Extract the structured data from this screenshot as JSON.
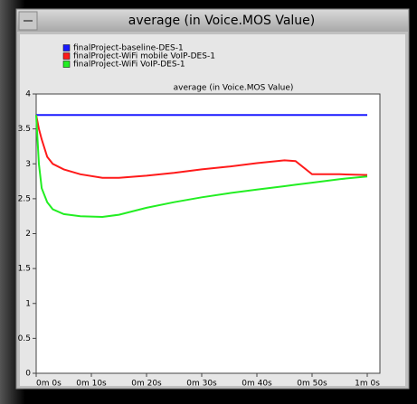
{
  "window_title": "average (in Voice.MOS Value)",
  "chart_data": {
    "type": "line",
    "title": "average (in Voice.MOS Value)",
    "x": [
      0,
      0.5,
      1,
      2,
      3,
      5,
      8,
      12,
      15,
      20,
      25,
      30,
      35,
      40,
      45,
      47,
      50,
      55,
      60
    ],
    "series": [
      {
        "name": "finalProject-baseline-DES-1",
        "color": "#1a1aff",
        "values": [
          3.7,
          3.7,
          3.7,
          3.7,
          3.7,
          3.7,
          3.7,
          3.7,
          3.7,
          3.7,
          3.7,
          3.7,
          3.7,
          3.7,
          3.7,
          3.7,
          3.7,
          3.7,
          3.7
        ]
      },
      {
        "name": "finalProject-WiFi mobile VoIP-DES-1",
        "color": "#ff1a1a",
        "values": [
          3.7,
          3.5,
          3.35,
          3.1,
          3.0,
          2.92,
          2.85,
          2.8,
          2.8,
          2.83,
          2.87,
          2.92,
          2.96,
          3.01,
          3.05,
          3.04,
          2.85,
          2.85,
          2.84
        ]
      },
      {
        "name": "finalProject-WiFi VoIP-DES-1",
        "color": "#22ee22",
        "values": [
          3.7,
          3.0,
          2.65,
          2.45,
          2.35,
          2.28,
          2.25,
          2.24,
          2.27,
          2.37,
          2.45,
          2.52,
          2.58,
          2.63,
          2.68,
          2.7,
          2.73,
          2.78,
          2.82
        ]
      }
    ],
    "xlim": [
      0,
      60
    ],
    "xticks": [
      {
        "value": 0,
        "label": "0m 0s"
      },
      {
        "value": 10,
        "label": "0m 10s"
      },
      {
        "value": 20,
        "label": "0m 20s"
      },
      {
        "value": 30,
        "label": "0m 30s"
      },
      {
        "value": 40,
        "label": "0m 40s"
      },
      {
        "value": 50,
        "label": "0m 50s"
      },
      {
        "value": 60,
        "label": "1m 0s"
      }
    ],
    "ylim": [
      0,
      4
    ],
    "yticks": [
      0,
      0.5,
      1,
      1.5,
      2,
      2.5,
      3,
      3.5,
      4
    ],
    "legend": "top-left"
  }
}
